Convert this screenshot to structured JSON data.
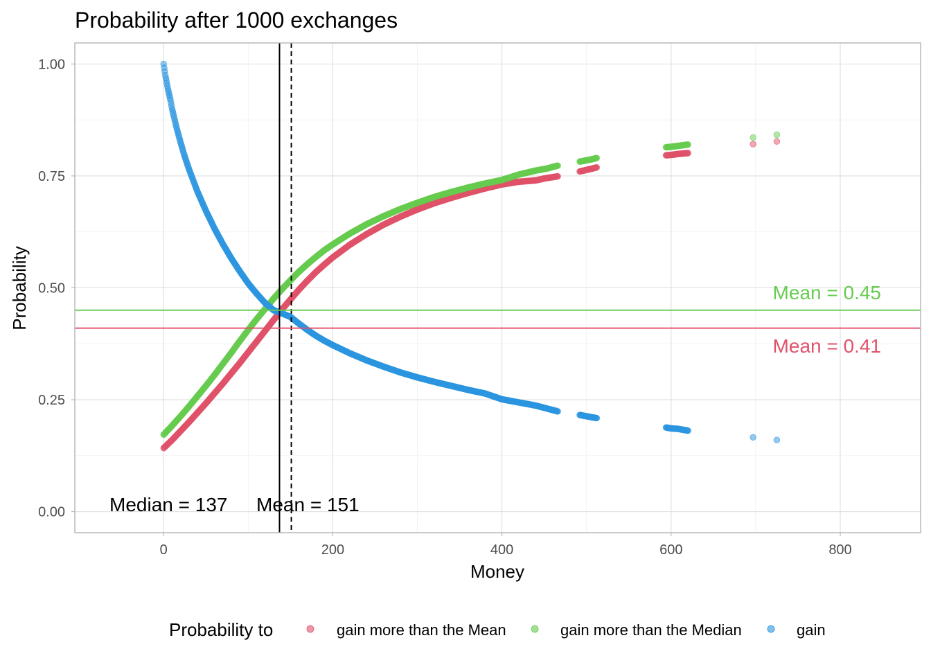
{
  "chart_data": {
    "type": "scatter",
    "title": "Probability after 1000 exchanges",
    "xlabel": "Money",
    "ylabel": "Probability",
    "xlim": [
      -105,
      895
    ],
    "ylim": [
      -0.047,
      1.047
    ],
    "x_ticks": [
      0,
      200,
      400,
      600,
      800
    ],
    "x_tick_labels": [
      "0",
      "200",
      "400",
      "600",
      "800"
    ],
    "y_ticks": [
      0,
      0.25,
      0.5,
      0.75,
      1.0
    ],
    "y_tick_labels": [
      "0.00",
      "0.25",
      "0.50",
      "0.75",
      "1.00"
    ],
    "grid": true,
    "legend": {
      "title": "Probability to",
      "position": "bottom",
      "entries": [
        {
          "label": "gain more than the Mean",
          "color": "#E0526A"
        },
        {
          "label": "gain more than the Median",
          "color": "#66CC4F"
        },
        {
          "label": "gain",
          "color": "#2C95DF"
        }
      ]
    },
    "series": [
      {
        "name": "gain more than the Mean",
        "color": "#E0526A",
        "x": [
          0,
          10,
          20,
          30,
          40,
          50,
          60,
          70,
          80,
          90,
          100,
          110,
          120,
          130,
          140,
          150,
          160,
          170,
          180,
          190,
          200,
          220,
          240,
          260,
          280,
          300,
          320,
          340,
          360,
          380,
          400,
          420,
          440,
          452,
          466,
          492,
          506,
          512,
          594,
          600,
          608,
          620,
          697,
          725
        ],
        "y": [
          0.142,
          0.16,
          0.18,
          0.2,
          0.221,
          0.242,
          0.264,
          0.286,
          0.309,
          0.332,
          0.356,
          0.38,
          0.404,
          0.428,
          0.452,
          0.474,
          0.496,
          0.516,
          0.535,
          0.552,
          0.568,
          0.596,
          0.62,
          0.641,
          0.659,
          0.675,
          0.689,
          0.701,
          0.712,
          0.722,
          0.731,
          0.737,
          0.74,
          0.745,
          0.749,
          0.76,
          0.766,
          0.769,
          0.796,
          0.797,
          0.799,
          0.801,
          0.821,
          0.827
        ]
      },
      {
        "name": "gain more than the Median",
        "color": "#66CC4F",
        "x": [
          0,
          10,
          20,
          30,
          40,
          50,
          60,
          70,
          80,
          90,
          100,
          110,
          120,
          130,
          140,
          150,
          160,
          170,
          180,
          190,
          200,
          220,
          240,
          260,
          280,
          300,
          320,
          340,
          360,
          380,
          400,
          420,
          440,
          452,
          466,
          492,
          506,
          512,
          594,
          600,
          608,
          620,
          697,
          725
        ],
        "y": [
          0.172,
          0.192,
          0.213,
          0.235,
          0.258,
          0.281,
          0.305,
          0.33,
          0.355,
          0.381,
          0.406,
          0.43,
          0.453,
          0.476,
          0.497,
          0.517,
          0.536,
          0.553,
          0.569,
          0.584,
          0.597,
          0.621,
          0.642,
          0.66,
          0.676,
          0.69,
          0.703,
          0.714,
          0.724,
          0.733,
          0.741,
          0.753,
          0.762,
          0.766,
          0.773,
          0.782,
          0.787,
          0.79,
          0.814,
          0.815,
          0.817,
          0.82,
          0.836,
          0.842
        ]
      },
      {
        "name": "gain",
        "color": "#2C95DF",
        "x": [
          0,
          2,
          5,
          8,
          10,
          15,
          20,
          25,
          30,
          40,
          50,
          60,
          70,
          80,
          90,
          100,
          110,
          120,
          130,
          140,
          150,
          160,
          170,
          180,
          190,
          200,
          220,
          240,
          260,
          280,
          300,
          320,
          340,
          360,
          380,
          400,
          420,
          440,
          452,
          466,
          492,
          506,
          512,
          594,
          600,
          608,
          620,
          697,
          725
        ],
        "y": [
          1.0,
          0.975,
          0.945,
          0.92,
          0.9,
          0.86,
          0.825,
          0.793,
          0.765,
          0.715,
          0.672,
          0.633,
          0.598,
          0.566,
          0.537,
          0.51,
          0.487,
          0.466,
          0.45,
          0.443,
          0.435,
          0.42,
          0.406,
          0.393,
          0.382,
          0.372,
          0.354,
          0.338,
          0.324,
          0.311,
          0.3,
          0.29,
          0.281,
          0.272,
          0.264,
          0.251,
          0.244,
          0.237,
          0.231,
          0.224,
          0.216,
          0.211,
          0.209,
          0.188,
          0.186,
          0.185,
          0.181,
          0.166,
          0.16
        ]
      }
    ],
    "reference_lines": [
      {
        "orientation": "vertical",
        "x": 137,
        "style": "solid",
        "color": "#000000",
        "label": "Median = 137"
      },
      {
        "orientation": "vertical",
        "x": 151,
        "style": "dashed",
        "color": "#000000",
        "label": "Mean = 151"
      },
      {
        "orientation": "horizontal",
        "y": 0.45,
        "style": "solid",
        "color": "#66CC4F",
        "label": "Mean = 0.45"
      },
      {
        "orientation": "horizontal",
        "y": 0.41,
        "style": "solid",
        "color": "#E0526A",
        "label": "Mean = 0.41"
      }
    ]
  }
}
